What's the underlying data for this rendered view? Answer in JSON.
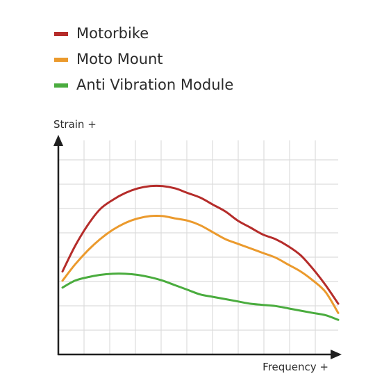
{
  "chart_data": {
    "type": "line",
    "title": "",
    "xlabel": "Frequency +",
    "ylabel": "Strain +",
    "grid": true,
    "legend_position": "top-left",
    "xlim": [
      0,
      11
    ],
    "ylim": [
      0,
      8.5
    ],
    "x": [
      0,
      0.5,
      1,
      1.5,
      2,
      2.5,
      3,
      3.5,
      4,
      4.5,
      5,
      5.5,
      6,
      6.5,
      7,
      7.5,
      8,
      8.5,
      9,
      9.5,
      10,
      10.5,
      11
    ],
    "series": [
      {
        "name": "Motorbike",
        "color": "#b52c2a",
        "values": [
          3.6,
          4.7,
          5.6,
          6.3,
          6.7,
          7.0,
          7.2,
          7.3,
          7.3,
          7.2,
          7.0,
          6.8,
          6.5,
          6.2,
          5.8,
          5.5,
          5.2,
          5.0,
          4.7,
          4.3,
          3.7,
          3.0,
          2.2
        ]
      },
      {
        "name": "Moto Mount",
        "color": "#eb9a2d",
        "values": [
          3.2,
          3.9,
          4.5,
          5.0,
          5.4,
          5.7,
          5.9,
          6.0,
          6.0,
          5.9,
          5.8,
          5.6,
          5.3,
          5.0,
          4.8,
          4.6,
          4.4,
          4.2,
          3.9,
          3.6,
          3.2,
          2.7,
          1.8
        ]
      },
      {
        "name": "Anti Vibration Module",
        "color": "#4aac3e",
        "values": [
          2.9,
          3.2,
          3.35,
          3.45,
          3.5,
          3.5,
          3.45,
          3.35,
          3.2,
          3.0,
          2.8,
          2.6,
          2.5,
          2.4,
          2.3,
          2.2,
          2.15,
          2.1,
          2.0,
          1.9,
          1.8,
          1.7,
          1.5
        ]
      }
    ]
  }
}
